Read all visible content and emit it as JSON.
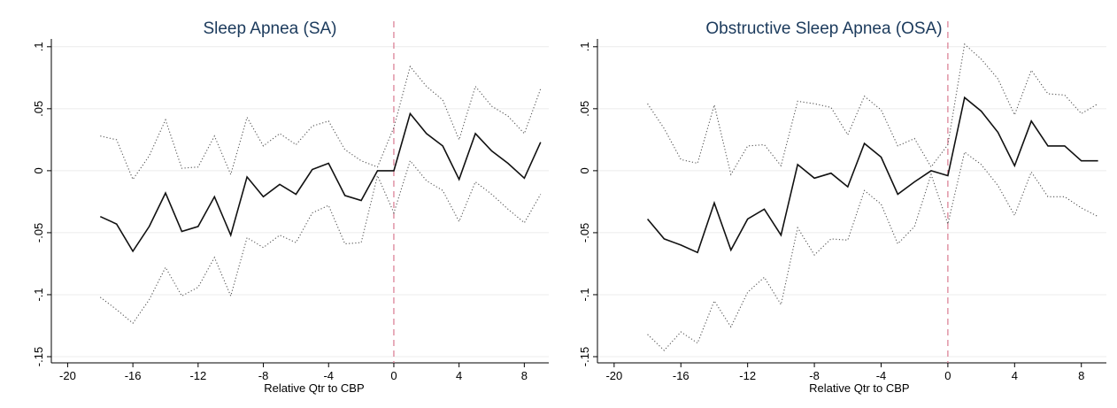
{
  "chart_data": [
    {
      "type": "line",
      "title": "Sleep Apnea (SA)",
      "xlabel": "Relative Qtr to CBP",
      "ylabel": "",
      "xlim": [
        -21,
        9.5
      ],
      "ylim": [
        -0.155,
        0.102
      ],
      "xticks": [
        -20,
        -16,
        -12,
        -8,
        -4,
        0,
        4,
        8
      ],
      "xtick_labels": [
        "-20",
        "-16",
        "-12",
        "-8",
        "-4",
        "0",
        "4",
        "8"
      ],
      "yticks": [
        0.1,
        0.05,
        0,
        -0.05,
        -0.1,
        -0.15
      ],
      "ytick_labels": [
        ".1",
        ".05",
        "0",
        "-.05",
        "-.1",
        "-.15"
      ],
      "grid": true,
      "reference_line_x": 0,
      "x": [
        -18,
        -17,
        -16,
        -15,
        -14,
        -13,
        -12,
        -11,
        -10,
        -9,
        -8,
        -7,
        -6,
        -5,
        -4,
        -3,
        -2,
        -1,
        0,
        1,
        2,
        3,
        4,
        5,
        6,
        7,
        8,
        9
      ],
      "series": [
        {
          "style": "solid",
          "values": [
            -0.037,
            -0.043,
            -0.065,
            -0.045,
            -0.018,
            -0.049,
            -0.045,
            -0.021,
            -0.052,
            -0.005,
            -0.021,
            -0.011,
            -0.019,
            0.001,
            0.006,
            -0.02,
            -0.024,
            0.0,
            0.0,
            0.046,
            0.03,
            0.02,
            -0.007,
            0.03,
            0.016,
            0.006,
            -0.006,
            0.023
          ]
        },
        {
          "style": "dotted",
          "values": [
            0.028,
            0.025,
            -0.007,
            0.012,
            0.041,
            0.002,
            0.003,
            0.028,
            -0.003,
            0.043,
            0.02,
            0.03,
            0.021,
            0.036,
            0.04,
            0.017,
            0.008,
            0.003,
            0.035,
            0.084,
            0.068,
            0.057,
            0.025,
            0.068,
            0.052,
            0.044,
            0.03,
            0.066
          ]
        },
        {
          "style": "dotted",
          "values": [
            -0.102,
            -0.112,
            -0.123,
            -0.104,
            -0.078,
            -0.101,
            -0.094,
            -0.07,
            -0.101,
            -0.054,
            -0.062,
            -0.052,
            -0.058,
            -0.034,
            -0.028,
            -0.059,
            -0.058,
            -0.004,
            -0.034,
            0.008,
            -0.008,
            -0.016,
            -0.041,
            -0.009,
            -0.019,
            -0.031,
            -0.042,
            -0.019
          ]
        }
      ]
    },
    {
      "type": "line",
      "title": "Obstructive Sleep Apnea (OSA)",
      "xlabel": "Relative Qtr to CBP",
      "ylabel": "",
      "xlim": [
        -21,
        9.5
      ],
      "ylim": [
        -0.155,
        0.102
      ],
      "xticks": [
        -20,
        -16,
        -12,
        -8,
        -4,
        0,
        4,
        8
      ],
      "xtick_labels": [
        "-20",
        "-16",
        "-12",
        "-8",
        "-4",
        "0",
        "4",
        "8"
      ],
      "yticks": [
        0.1,
        0.05,
        0,
        -0.05,
        -0.1,
        -0.15
      ],
      "ytick_labels": [
        ".1",
        ".05",
        "0",
        "-.05",
        "-.1",
        "-.15"
      ],
      "grid": true,
      "reference_line_x": 0,
      "x": [
        -18,
        -17,
        -16,
        -15,
        -14,
        -13,
        -12,
        -11,
        -10,
        -9,
        -8,
        -7,
        -6,
        -5,
        -4,
        -3,
        -2,
        -1,
        0,
        1,
        2,
        3,
        4,
        5,
        6,
        7,
        8,
        9
      ],
      "series": [
        {
          "style": "solid",
          "values": [
            -0.039,
            -0.055,
            -0.06,
            -0.066,
            -0.026,
            -0.064,
            -0.039,
            -0.031,
            -0.052,
            0.005,
            -0.006,
            -0.002,
            -0.013,
            0.022,
            0.011,
            -0.019,
            -0.009,
            0.0,
            -0.004,
            0.059,
            0.048,
            0.031,
            0.004,
            0.04,
            0.02,
            0.02,
            0.008,
            0.008
          ]
        },
        {
          "style": "dotted",
          "values": [
            0.054,
            0.034,
            0.009,
            0.006,
            0.053,
            -0.003,
            0.02,
            0.021,
            0.004,
            0.056,
            0.054,
            0.051,
            0.029,
            0.06,
            0.049,
            0.02,
            0.026,
            0.003,
            0.021,
            0.102,
            0.09,
            0.074,
            0.045,
            0.081,
            0.062,
            0.061,
            0.046,
            0.054
          ]
        },
        {
          "style": "dotted",
          "values": [
            -0.132,
            -0.145,
            -0.13,
            -0.139,
            -0.105,
            -0.126,
            -0.098,
            -0.086,
            -0.108,
            -0.046,
            -0.068,
            -0.055,
            -0.056,
            -0.016,
            -0.027,
            -0.059,
            -0.045,
            -0.003,
            -0.043,
            0.015,
            0.005,
            -0.012,
            -0.036,
            -0.001,
            -0.021,
            -0.021,
            -0.03,
            -0.037
          ]
        }
      ]
    }
  ]
}
